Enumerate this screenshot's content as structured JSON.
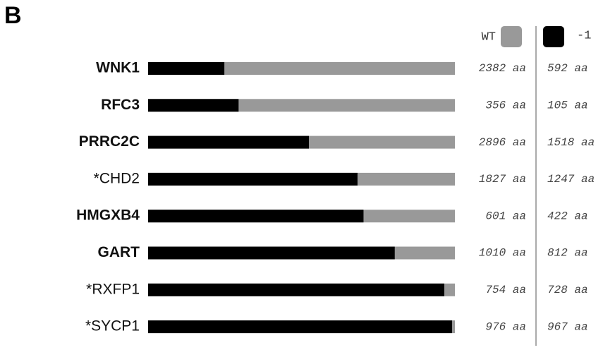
{
  "panel_label": "B",
  "chart_data": {
    "type": "bar",
    "orientation": "horizontal",
    "categories": [
      "WNK1",
      "RFC3",
      "PRRC2C",
      "*CHD2",
      "HMGXB4",
      "GART",
      "*RXFP1",
      "*SYCP1"
    ],
    "bold": [
      true,
      true,
      true,
      false,
      true,
      true,
      false,
      false
    ],
    "series": [
      {
        "name": "WT",
        "color": "#999999",
        "values": [
          2382,
          356,
          2896,
          1827,
          601,
          1010,
          754,
          976
        ],
        "value_labels": [
          "2382 aa",
          "356 aa",
          "2896 aa",
          "1827 aa",
          "601 aa",
          "1010 aa",
          "754 aa",
          "976 aa"
        ]
      },
      {
        "name": "-1",
        "color": "#000000",
        "values": [
          592,
          105,
          1518,
          1247,
          422,
          812,
          728,
          967
        ],
        "value_labels": [
          "592 aa",
          "105 aa",
          "1518 aa",
          "1247 aa",
          "422 aa",
          "812 aa",
          "728 aa",
          "967 aa"
        ]
      }
    ]
  }
}
